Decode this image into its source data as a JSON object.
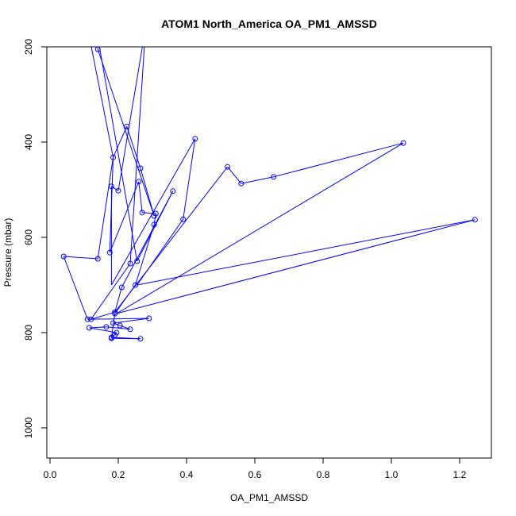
{
  "chart_data": {
    "type": "scatter",
    "title": "ATOM1 North_America OA_PM1_AMSSD",
    "xlabel": "OA_PM1_AMSSD",
    "ylabel": "Pressure (mbar)",
    "xlim": [
      0.0,
      1.3
    ],
    "ylim": [
      1000,
      160
    ],
    "y_reversed": true,
    "x_ticks": [
      0.0,
      0.2,
      0.4,
      0.6,
      0.8,
      1.0,
      1.2
    ],
    "x_tick_labels": [
      "0.0",
      "0.2",
      "0.4",
      "0.6",
      "0.8",
      "1.0",
      "1.2"
    ],
    "y_ticks": [
      200,
      400,
      600,
      800,
      1000
    ],
    "y_tick_labels": [
      "200",
      "400",
      "600",
      "800",
      "1000"
    ],
    "grid": false,
    "legend": "none",
    "series_color": "#0000ff",
    "points": [
      [
        0.11,
        160
      ],
      [
        0.14,
        645
      ],
      [
        0.04,
        640
      ],
      [
        0.11,
        772
      ],
      [
        0.12,
        772
      ],
      [
        0.29,
        770
      ],
      [
        0.185,
        780
      ],
      [
        0.205,
        785
      ],
      [
        0.165,
        788
      ],
      [
        0.235,
        793
      ],
      [
        0.115,
        790
      ],
      [
        0.195,
        800
      ],
      [
        0.19,
        805
      ],
      [
        0.18,
        812
      ],
      [
        0.265,
        813
      ],
      [
        0.18,
        810
      ],
      [
        0.19,
        760
      ],
      [
        0.25,
        700
      ],
      [
        0.305,
        573
      ],
      [
        0.31,
        550
      ],
      [
        0.27,
        548
      ],
      [
        0.26,
        483
      ],
      [
        0.175,
        632
      ],
      [
        0.185,
        432
      ],
      [
        0.225,
        367
      ],
      [
        0.265,
        455
      ],
      [
        0.305,
        555
      ],
      [
        0.14,
        205
      ],
      [
        0.135,
        160
      ],
      [
        0.255,
        650
      ],
      [
        0.36,
        503
      ],
      [
        0.21,
        705
      ],
      [
        0.19,
        757
      ],
      [
        0.52,
        452
      ],
      [
        0.56,
        487
      ],
      [
        0.655,
        473
      ],
      [
        1.035,
        402
      ],
      [
        1.245,
        563
      ],
      [
        0.39,
        562
      ],
      [
        0.425,
        393
      ],
      [
        0.18,
        493
      ],
      [
        0.2,
        502
      ],
      [
        0.28,
        160
      ],
      [
        0.235,
        655
      ]
    ],
    "path_points": [
      [
        0.11,
        160
      ],
      [
        0.185,
        432
      ],
      [
        0.14,
        645
      ],
      [
        0.04,
        640
      ],
      [
        0.11,
        772
      ],
      [
        0.29,
        770
      ],
      [
        0.185,
        780
      ],
      [
        0.205,
        785
      ],
      [
        0.235,
        793
      ],
      [
        0.165,
        788
      ],
      [
        0.115,
        790
      ],
      [
        0.195,
        800
      ],
      [
        0.18,
        812
      ],
      [
        0.265,
        813
      ],
      [
        0.18,
        810
      ],
      [
        0.19,
        760
      ],
      [
        0.25,
        700
      ],
      [
        0.305,
        573
      ],
      [
        0.31,
        550
      ],
      [
        0.27,
        548
      ],
      [
        0.26,
        483
      ],
      [
        0.175,
        632
      ],
      [
        0.185,
        432
      ],
      [
        0.225,
        367
      ],
      [
        0.265,
        455
      ],
      [
        0.305,
        555
      ],
      [
        0.14,
        205
      ],
      [
        0.135,
        160
      ],
      [
        0.255,
        650
      ],
      [
        0.36,
        503
      ],
      [
        0.21,
        705
      ],
      [
        0.19,
        757
      ],
      [
        0.52,
        452
      ],
      [
        0.56,
        487
      ],
      [
        0.655,
        473
      ],
      [
        1.035,
        402
      ],
      [
        0.195,
        760
      ],
      [
        1.245,
        563
      ],
      [
        0.255,
        700
      ],
      [
        0.39,
        562
      ],
      [
        0.425,
        393
      ],
      [
        0.18,
        700
      ],
      [
        0.18,
        493
      ],
      [
        0.2,
        502
      ],
      [
        0.28,
        160
      ],
      [
        0.235,
        655
      ],
      [
        0.12,
        772
      ],
      [
        0.19,
        757
      ]
    ]
  }
}
